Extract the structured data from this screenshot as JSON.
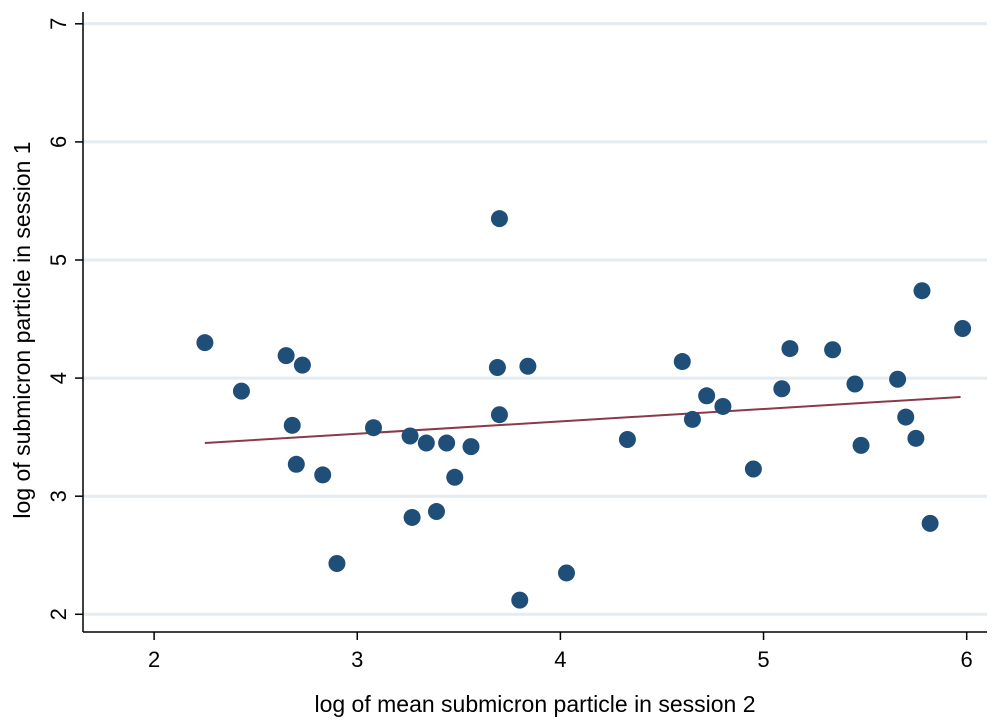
{
  "chart_data": {
    "type": "scatter",
    "title": "",
    "xlabel": "log of mean submicron particle in session 2",
    "ylabel": "log of submicron particle in session 1",
    "xlim": [
      1.65,
      6.1
    ],
    "ylim": [
      1.85,
      7.1
    ],
    "xticks": [
      2,
      3,
      4,
      5,
      6
    ],
    "yticks": [
      2,
      3,
      4,
      5,
      6,
      7
    ],
    "grid": "horizontal",
    "marker_color": "#1f4e79",
    "fit_color": "#8b3a4a",
    "points": [
      {
        "x": 2.25,
        "y": 4.3
      },
      {
        "x": 2.43,
        "y": 3.89
      },
      {
        "x": 2.65,
        "y": 4.19
      },
      {
        "x": 2.68,
        "y": 3.6
      },
      {
        "x": 2.7,
        "y": 3.27
      },
      {
        "x": 2.73,
        "y": 4.11
      },
      {
        "x": 2.83,
        "y": 3.18
      },
      {
        "x": 2.9,
        "y": 2.43
      },
      {
        "x": 3.08,
        "y": 3.58
      },
      {
        "x": 3.26,
        "y": 3.51
      },
      {
        "x": 3.27,
        "y": 2.82
      },
      {
        "x": 3.34,
        "y": 3.45
      },
      {
        "x": 3.39,
        "y": 2.87
      },
      {
        "x": 3.44,
        "y": 3.45
      },
      {
        "x": 3.48,
        "y": 3.16
      },
      {
        "x": 3.56,
        "y": 3.42
      },
      {
        "x": 3.69,
        "y": 4.09
      },
      {
        "x": 3.7,
        "y": 5.35
      },
      {
        "x": 3.7,
        "y": 3.69
      },
      {
        "x": 3.8,
        "y": 2.12
      },
      {
        "x": 3.84,
        "y": 4.1
      },
      {
        "x": 4.03,
        "y": 2.35
      },
      {
        "x": 4.33,
        "y": 3.48
      },
      {
        "x": 4.6,
        "y": 4.14
      },
      {
        "x": 4.65,
        "y": 3.65
      },
      {
        "x": 4.72,
        "y": 3.85
      },
      {
        "x": 4.8,
        "y": 3.76
      },
      {
        "x": 4.95,
        "y": 3.23
      },
      {
        "x": 5.09,
        "y": 3.91
      },
      {
        "x": 5.13,
        "y": 4.25
      },
      {
        "x": 5.34,
        "y": 4.24
      },
      {
        "x": 5.45,
        "y": 3.95
      },
      {
        "x": 5.48,
        "y": 3.43
      },
      {
        "x": 5.66,
        "y": 3.99
      },
      {
        "x": 5.7,
        "y": 3.67
      },
      {
        "x": 5.75,
        "y": 3.49
      },
      {
        "x": 5.78,
        "y": 4.74
      },
      {
        "x": 5.82,
        "y": 2.77
      },
      {
        "x": 5.98,
        "y": 4.42
      }
    ],
    "fit_line": [
      {
        "x": 2.25,
        "y": 3.45
      },
      {
        "x": 5.97,
        "y": 3.84
      }
    ]
  }
}
